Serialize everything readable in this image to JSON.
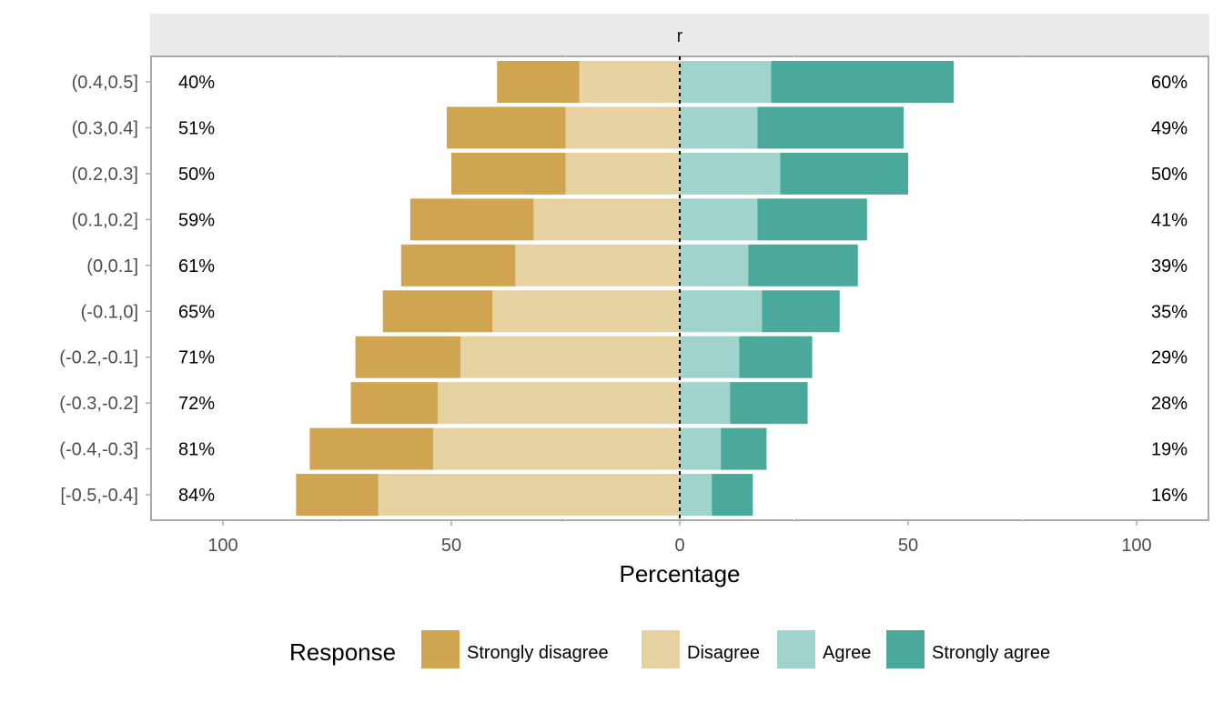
{
  "chart_data": {
    "type": "bar",
    "orientation": "horizontal",
    "diverging": true,
    "facet_label": "r",
    "categories": [
      "(0.4,0.5]",
      "(0.3,0.4]",
      "(0.2,0.3]",
      "(0.1,0.2]",
      "(0,0.1]",
      "(-0.1,0]",
      "(-0.2,-0.1]",
      "(-0.3,-0.2]",
      "(-0.4,-0.3]",
      "[-0.5,-0.4]"
    ],
    "series": [
      {
        "name": "Strongly disagree",
        "color": "#cfa552",
        "values": [
          18,
          26,
          25,
          27,
          25,
          24,
          23,
          19,
          27,
          18
        ]
      },
      {
        "name": "Disagree",
        "color": "#e6d2a0",
        "values": [
          22,
          25,
          25,
          32,
          36,
          41,
          48,
          53,
          54,
          66
        ]
      },
      {
        "name": "Agree",
        "color": "#a0d3cc",
        "values": [
          20,
          17,
          22,
          17,
          15,
          18,
          13,
          11,
          9,
          7
        ]
      },
      {
        "name": "Strongly agree",
        "color": "#4ba99c",
        "values": [
          40,
          32,
          28,
          24,
          24,
          17,
          16,
          17,
          10,
          9
        ]
      }
    ],
    "left_labels": [
      "40%",
      "51%",
      "50%",
      "59%",
      "61%",
      "65%",
      "71%",
      "72%",
      "81%",
      "84%"
    ],
    "right_labels": [
      "60%",
      "49%",
      "50%",
      "41%",
      "39%",
      "35%",
      "29%",
      "28%",
      "19%",
      "16%"
    ],
    "xlim": [
      -110,
      110
    ],
    "xticks": [
      -100,
      -50,
      0,
      50,
      100
    ],
    "xtick_labels": [
      "100",
      "50",
      "0",
      "50",
      "100"
    ],
    "xlabel": "Percentage",
    "legend_title": "Response",
    "legend_position": "bottom",
    "grid": true
  }
}
